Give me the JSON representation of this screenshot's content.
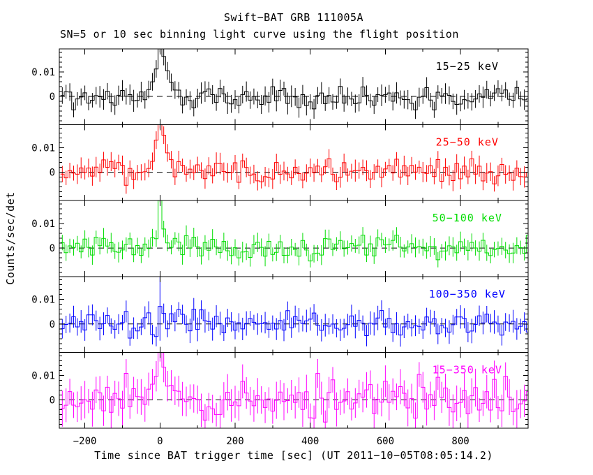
{
  "chart_data": {
    "type": "line",
    "title": "Swift−BAT GRB 111005A",
    "subtitle": "SN=5 or 10 sec binning light curve using the flight position",
    "xlabel": "Time since BAT trigger time [sec] (UT 2011−10−05T08:05:14.2)",
    "ylabel": "Counts/sec/det",
    "grid": false,
    "background": "#ffffff",
    "frame_color": "#000000",
    "bin_seconds": 10,
    "x_axis": {
      "lim": [
        -268,
        980
      ],
      "major_ticks": [
        -200,
        0,
        200,
        400,
        600,
        800
      ],
      "major_tick_labels": [
        "−200",
        "0",
        "200",
        "400",
        "600",
        "800"
      ],
      "minor_step": 100
    },
    "y_axis": {
      "lim_per_panel": [
        -0.0116,
        0.0194
      ],
      "major_ticks": [
        0,
        0.01
      ],
      "major_tick_labels": [
        "0",
        "0.01"
      ],
      "minor_step": 0.002
    },
    "zero_line": {
      "value": 0,
      "style": "dashed",
      "color": "#000000"
    },
    "panels": [
      {
        "label": "15−25 keV",
        "color": "#000000",
        "baseline": 0,
        "noise_sigma": 0.0023,
        "typical_error": 0.0036,
        "seed": 101,
        "burst_bins": [
          [
            -30,
            0.003
          ],
          [
            -20,
            0.006
          ],
          [
            -10,
            0.012
          ],
          [
            0,
            0.0205
          ],
          [
            10,
            0.017
          ],
          [
            20,
            0.01
          ],
          [
            30,
            0.005
          ],
          [
            40,
            0.002
          ]
        ]
      },
      {
        "label": "25−50 keV",
        "color": "#ff0000",
        "baseline": 0,
        "noise_sigma": 0.0023,
        "typical_error": 0.0036,
        "seed": 202,
        "burst_bins": [
          [
            -30,
            0.0025
          ],
          [
            -20,
            0.005
          ],
          [
            -10,
            0.013
          ],
          [
            0,
            0.021
          ],
          [
            10,
            0.015
          ],
          [
            20,
            0.008
          ],
          [
            30,
            0.004
          ]
        ]
      },
      {
        "label": "50−100 keV",
        "color": "#00dd00",
        "baseline": 0,
        "noise_sigma": 0.0022,
        "typical_error": 0.0034,
        "seed": 303,
        "burst_bins": [
          [
            -10,
            0.004
          ],
          [
            0,
            0.022
          ],
          [
            10,
            0.007
          ],
          [
            20,
            0.003
          ]
        ]
      },
      {
        "label": "100−350 keV",
        "color": "#0000ff",
        "baseline": 0,
        "noise_sigma": 0.0025,
        "typical_error": 0.004,
        "seed": 404,
        "burst_bins": [
          [
            -20,
            -0.004
          ],
          [
            -10,
            -0.005
          ],
          [
            0,
            0.007,
            0.014
          ],
          [
            10,
            0.004
          ]
        ]
      },
      {
        "label": "15−350 keV",
        "color": "#ff00ff",
        "baseline": 0,
        "noise_sigma": 0.0045,
        "typical_error": 0.0062,
        "seed": 505,
        "burst_bins": [
          [
            -10,
            0.01
          ],
          [
            0,
            0.022
          ],
          [
            10,
            0.012
          ],
          [
            20,
            0.006
          ]
        ]
      }
    ]
  }
}
